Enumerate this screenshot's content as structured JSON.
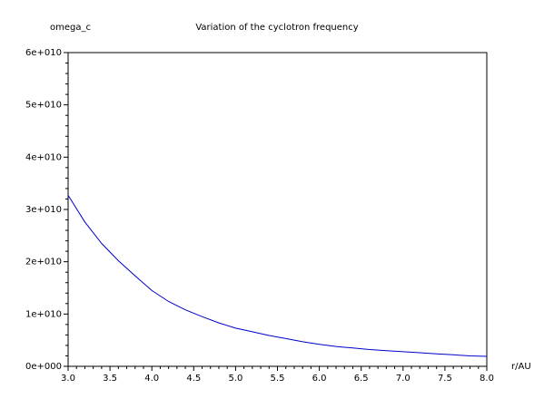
{
  "chart_data": {
    "type": "line",
    "title": "Variation of the cyclotron frequency",
    "xlabel": "r/AU",
    "ylabel": "omega_c",
    "xlim": [
      3.0,
      8.0
    ],
    "ylim": [
      0,
      60000000000.0
    ],
    "xticks": [
      3.0,
      3.5,
      4.0,
      4.5,
      5.0,
      5.5,
      6.0,
      6.5,
      7.0,
      7.5,
      8.0
    ],
    "xtick_labels": [
      "3.0",
      "3.5",
      "4.0",
      "4.5",
      "5.0",
      "5.5",
      "6.0",
      "6.5",
      "7.0",
      "7.5",
      "8.0"
    ],
    "yticks": [
      0,
      10000000000.0,
      20000000000.0,
      30000000000.0,
      40000000000.0,
      50000000000.0,
      60000000000.0
    ],
    "ytick_labels": [
      "0e+000",
      "1e+010",
      "2e+010",
      "3e+010",
      "4e+010",
      "5e+010",
      "6e+010"
    ],
    "grid": false,
    "series": [
      {
        "color": "#0000cc",
        "x": [
          3.0,
          3.2,
          3.4,
          3.6,
          3.8,
          4.0,
          4.2,
          4.4,
          4.6,
          4.8,
          5.0,
          5.2,
          5.4,
          5.6,
          5.8,
          6.0,
          6.2,
          6.4,
          6.6,
          6.8,
          7.0,
          7.2,
          7.4,
          7.6,
          7.8,
          8.0
        ],
        "y": [
          32700000000.0,
          27600000000.0,
          23500000000.0,
          20200000000.0,
          17300000000.0,
          14500000000.0,
          12400000000.0,
          10800000000.0,
          9500000000.0,
          8300000000.0,
          7300000000.0,
          6600000000.0,
          5900000000.0,
          5300000000.0,
          4700000000.0,
          4200000000.0,
          3800000000.0,
          3500000000.0,
          3200000000.0,
          3000000000.0,
          2800000000.0,
          2600000000.0,
          2400000000.0,
          2200000000.0,
          2000000000.0,
          1900000000.0
        ]
      }
    ]
  }
}
